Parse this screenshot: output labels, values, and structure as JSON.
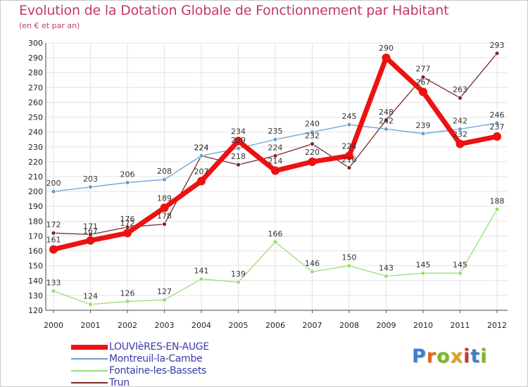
{
  "header": {
    "title": "Evolution de la Dotation Globale de Fonctionnement par Habitant",
    "subtitle": "(en € et par an)"
  },
  "logo": {
    "text": "Proxiti",
    "letter_colors": [
      "#3b7fd0",
      "#e06a1c",
      "#7ab828",
      "#e0a020",
      "#d03030",
      "#3b7fd0",
      "#7ab828"
    ]
  },
  "chart_data": {
    "type": "line",
    "x": [
      "2000",
      "2001",
      "2002",
      "2003",
      "2004",
      "2005",
      "2006",
      "2007",
      "2008",
      "2009",
      "2010",
      "2011",
      "2012"
    ],
    "ylim": [
      120,
      300
    ],
    "yticks": [
      120,
      130,
      140,
      150,
      160,
      170,
      180,
      190,
      200,
      210,
      220,
      230,
      240,
      250,
      260,
      270,
      280,
      290,
      300
    ],
    "grid": true,
    "legend_position": "bottom-left",
    "series": [
      {
        "name": "LOUVIèRES-EN-AUGE",
        "color": "#ee1111",
        "values": [
          161,
          167,
          172,
          189,
          207,
          234,
          214,
          220,
          224,
          290,
          267,
          232,
          237
        ]
      },
      {
        "name": "Montreuil-la-Cambe",
        "color": "#6a9fd0",
        "values": [
          200,
          203,
          206,
          208,
          224,
          229,
          235,
          240,
          245,
          242,
          239,
          242,
          246
        ]
      },
      {
        "name": "Fontaine-les-Bassets",
        "color": "#99dd77",
        "values": [
          133,
          124,
          126,
          127,
          141,
          139,
          166,
          146,
          150,
          143,
          145,
          145,
          188
        ]
      },
      {
        "name": "Trun",
        "color": "#7a2a2a",
        "values": [
          172,
          171,
          176,
          178,
          224,
          218,
          224,
          232,
          216,
          248,
          277,
          263,
          293
        ]
      }
    ]
  }
}
